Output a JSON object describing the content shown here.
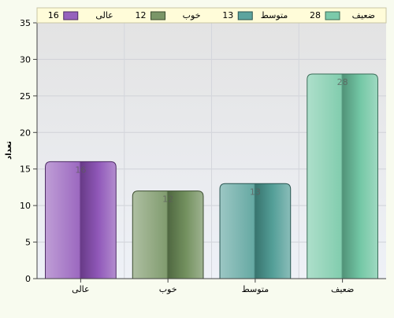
{
  "chart_data": {
    "type": "bar",
    "categories": [
      "عالی",
      "خوب",
      "متوسط",
      "ضعیف"
    ],
    "values": [
      16,
      12,
      13,
      28
    ],
    "data_labels": [
      "16",
      "12",
      "13",
      "28"
    ],
    "title": "",
    "xlabel": "",
    "ylabel": "تعداد",
    "ylim": [
      0,
      35
    ],
    "yticks": [
      0,
      5,
      10,
      15,
      20,
      25,
      30,
      35
    ],
    "grid": true,
    "legend_position": "top",
    "colors": {
      "عالی": "#8a4fb5",
      "خوب": "#6b8a56",
      "متوسط": "#4b9a93",
      "ضعیف": "#6cc4a0"
    },
    "legend": [
      {
        "label": "ضعیف",
        "value": "28"
      },
      {
        "label": "متوسط",
        "value": "13"
      },
      {
        "label": "خوب",
        "value": "12"
      },
      {
        "label": "عالی",
        "value": "16"
      }
    ]
  }
}
